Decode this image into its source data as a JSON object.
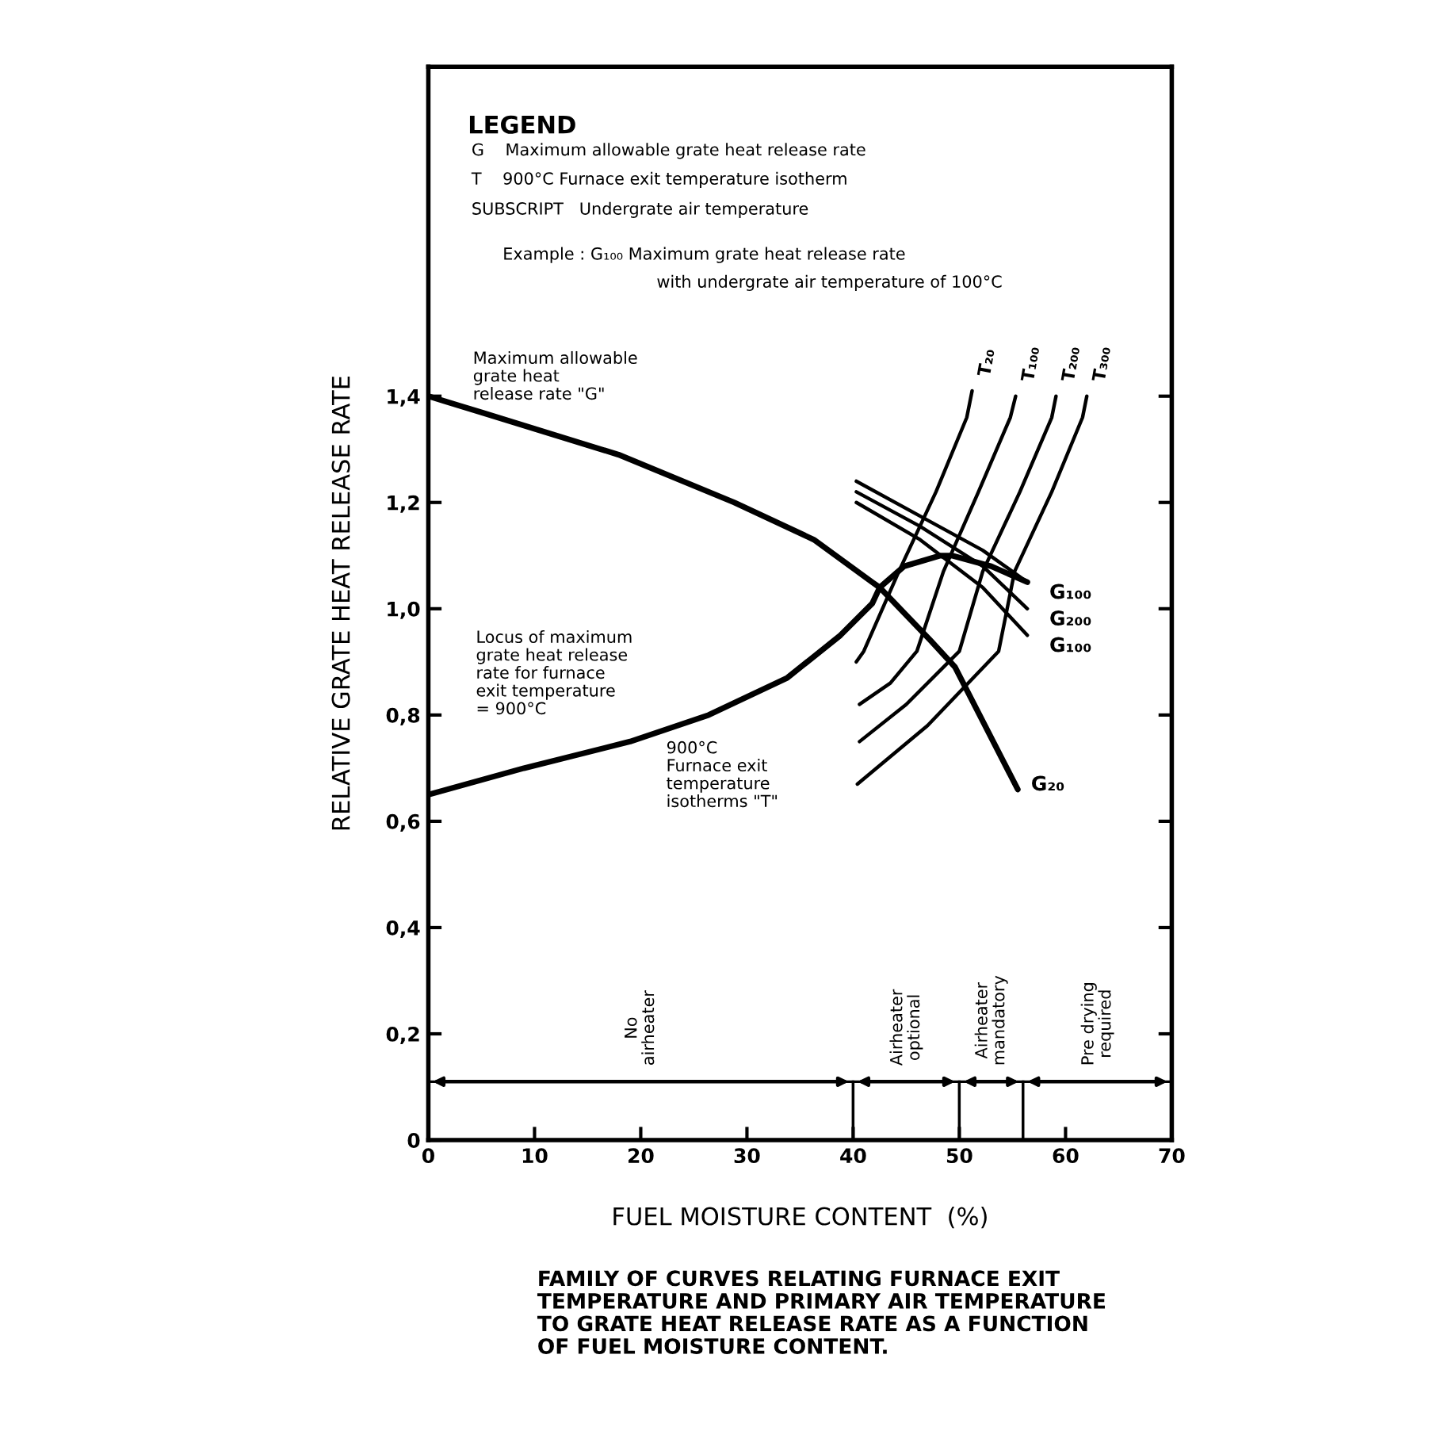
{
  "chart_data": {
    "type": "line",
    "xlabel": "FUEL MOISTURE CONTENT  (%)",
    "ylabel": "RELATIVE GRATE HEAT RELEASE RATE",
    "xlim": [
      0,
      70
    ],
    "xticks": [
      0,
      10,
      20,
      30,
      40,
      50,
      60,
      70
    ],
    "ylim": [
      0,
      2.02
    ],
    "yticks": [
      0,
      {
        "value": 0.2,
        "label": "0,2"
      },
      {
        "value": 0.4,
        "label": "0,4"
      },
      {
        "value": 0.6,
        "label": "0,6"
      },
      {
        "value": 0.8,
        "label": "0,8"
      },
      {
        "value": 1.0,
        "label": "1,0"
      },
      {
        "value": 1.2,
        "label": "1,2"
      },
      {
        "value": 1.4,
        "label": "1,4"
      }
    ],
    "grid": false,
    "legend": false,
    "marker": "none",
    "line_style": "solid",
    "series": [
      {
        "name": "G₂₀",
        "color": "#000000",
        "x": [
          0,
          4.9,
          17.9,
          28.8,
          36.3,
          41.8,
          42.5,
          47.3,
          49.6,
          55.5
        ],
        "values": [
          1.4,
          1.37,
          1.29,
          1.2,
          1.13,
          1.05,
          1.04,
          0.94,
          0.89,
          0.66
        ]
      },
      {
        "color": "#000000",
        "x": [
          0,
          9,
          19,
          26.4,
          33.8,
          38.8,
          41.8,
          42.5,
          44.8,
          48.2,
          49.3,
          53,
          56.4
        ],
        "values": [
          0.65,
          0.7,
          0.75,
          0.8,
          0.87,
          0.95,
          1.01,
          1.04,
          1.08,
          1.1,
          1.1,
          1.08,
          1.05
        ]
      },
      {
        "name": "G₁₀₀",
        "color": "#000000",
        "x": [
          40.3,
          46.7,
          52.2,
          56.4
        ],
        "values": [
          1.24,
          1.17,
          1.11,
          1.05
        ]
      },
      {
        "name": "G₂₀₀",
        "color": "#000000",
        "x": [
          40.3,
          46.3,
          52.2,
          56.4
        ],
        "values": [
          1.22,
          1.155,
          1.08,
          1.0
        ]
      },
      {
        "name": "G₁₀₀",
        "color": "#000000",
        "x": [
          40.3,
          46.3,
          52.2,
          56.4
        ],
        "values": [
          1.2,
          1.13,
          1.04,
          0.95
        ]
      },
      {
        "name": "T₂₀",
        "color": "#000000",
        "x": [
          40.3,
          41,
          44.3,
          47.8,
          50.7,
          51.2
        ],
        "values": [
          0.9,
          0.92,
          1.07,
          1.22,
          1.36,
          1.41
        ]
      },
      {
        "name": "T₁₀₀",
        "color": "#000000",
        "x": [
          40.6,
          43.5,
          46,
          48.5,
          51.8,
          54.8,
          55.3
        ],
        "values": [
          0.82,
          0.86,
          0.92,
          1.07,
          1.22,
          1.36,
          1.4
        ]
      },
      {
        "name": "T₂₀₀",
        "color": "#000000",
        "x": [
          40.6,
          45,
          50,
          52.2,
          55.7,
          58.7,
          59.1
        ],
        "values": [
          0.75,
          0.82,
          0.92,
          1.07,
          1.22,
          1.36,
          1.4
        ]
      },
      {
        "name": "T₃₀₀",
        "color": "#000000",
        "x": [
          40.4,
          47,
          53.7,
          55.2,
          58.7,
          61.6,
          62
        ],
        "values": [
          0.67,
          0.78,
          0.92,
          1.07,
          1.22,
          1.36,
          1.4
        ]
      }
    ],
    "bands": [
      {
        "axis": "x",
        "from": 0,
        "to": 40,
        "label": "No\nairheater"
      },
      {
        "axis": "x",
        "from": 40,
        "to": 50,
        "label": "Airheater\noptional"
      },
      {
        "axis": "x",
        "from": 50,
        "to": 56,
        "label": "Airheater\nmandatory"
      },
      {
        "axis": "x",
        "from": 56,
        "to": 70,
        "label": "Pre drying\nrequired"
      }
    ],
    "annotations": [
      "LEGEND",
      "G    Maximum allowable grate heat release rate",
      "T    900°C Furnace exit temperature isotherm",
      "SUBSCRIPT   Undergrate air temperature",
      "Example : G₁₀₀ Maximum grate heat release rate",
      "with undergrate air temperature of 100°C",
      "Maximum allowable\ngrate heat\nrelease rate \"G\"",
      "Locus of maximum\ngrate heat release\nrate for furnace\nexit temperature\n= 900°C",
      "900°C\nFurnace exit\ntemperature\nisotherms \"T\"",
      "FAMILY OF CURVES RELATING FURNACE EXIT\nTEMPERATURE AND PRIMARY AIR TEMPERATURE\nTO GRATE HEAT RELEASE RATE AS A FUNCTION\nOF FUEL MOISTURE CONTENT."
    ]
  }
}
